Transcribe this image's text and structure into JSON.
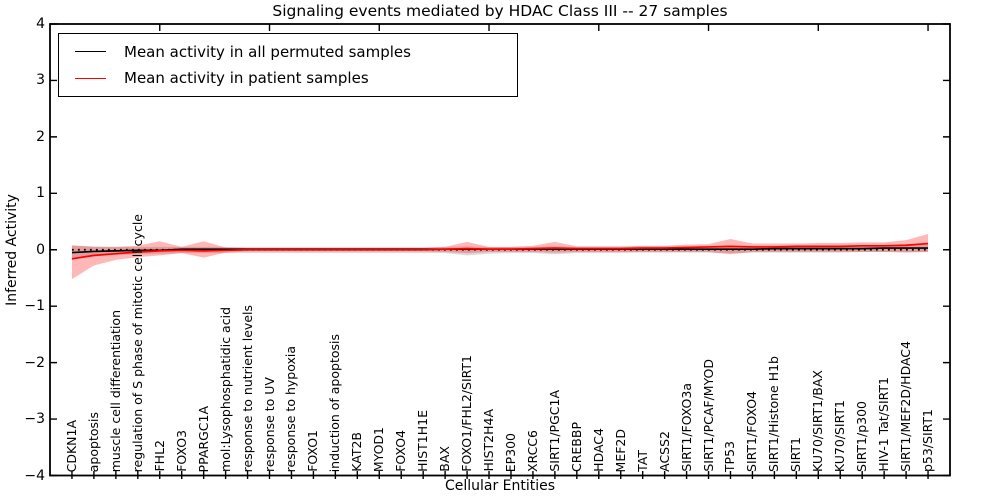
{
  "figure": {
    "title": "Signaling events mediated by HDAC Class III -- 27 samples",
    "xlabel": "Cellular Entities",
    "ylabel": "Inferred Activity"
  },
  "axes": {
    "ytick_labels": [
      "4",
      "3",
      "2",
      "1",
      "0",
      "−1",
      "−2",
      "−3",
      "−4"
    ],
    "ytick_values": [
      4,
      3,
      2,
      1,
      0,
      -1,
      -2,
      -3,
      -4
    ]
  },
  "chart_data": {
    "type": "line",
    "title": "Signaling events mediated by HDAC Class III -- 27 samples",
    "xlabel": "Cellular Entities",
    "ylabel": "Inferred Activity",
    "ylim": [
      -4,
      4
    ],
    "xlim_units": [
      0,
      41
    ],
    "yticks": [
      4,
      3,
      2,
      1,
      0,
      -1,
      -2,
      -3,
      -4
    ],
    "top_xticks_units": [
      5,
      10,
      15,
      20,
      25,
      30,
      35,
      40
    ],
    "grid": false,
    "legend_position": "upper left",
    "zero_reference_line": {
      "style": "dotted",
      "color": "#000000",
      "y": 0
    },
    "categories": [
      "CDKN1A",
      "apoptosis",
      "muscle cell differentiation",
      "regulation of S phase of mitotic cell cycle",
      "FHL2",
      "FOXO3",
      "PPARGC1A",
      "mol:Lysophosphatidic acid",
      "response to nutrient levels",
      "response to UV",
      "response to hypoxia",
      "FOXO1",
      "induction of apoptosis",
      "KAT2B",
      "MYOD1",
      "FOXO4",
      "HIST1H1E",
      "BAX",
      "FOXO1/FHL2/SIRT1",
      "HIST2H4A",
      "EP300",
      "XRCC6",
      "SIRT1/PGC1A",
      "CREBBP",
      "HDAC4",
      "MEF2D",
      "TAT",
      "ACSS2",
      "SIRT1/FOXO3a",
      "SIRT1/PCAF/MYOD",
      "TP53",
      "SIRT1/FOXO4",
      "SIRT1/Histone H1b",
      "SIRT1",
      "KU70/SIRT1/BAX",
      "KU70/SIRT1",
      "SIRT1/p300",
      "HIV-1 Tat/SIRT1",
      "SIRT1/MEF2D/HDAC4",
      "p53/SIRT1"
    ],
    "series": [
      {
        "name": "Mean activity in all permuted samples",
        "color": "#000000",
        "band_color": "#aaaaaa",
        "band_opacity": 0.45,
        "values": [
          -0.05,
          -0.03,
          -0.02,
          -0.01,
          -0.01,
          0.01,
          0.01,
          0.01,
          0.01,
          0.01,
          0.01,
          0.01,
          0.01,
          0.01,
          0.01,
          0.01,
          0.01,
          0.01,
          0.01,
          0.01,
          0.01,
          0.01,
          0.01,
          0.01,
          0.01,
          0.01,
          0.01,
          0.01,
          0.01,
          0.01,
          0.01,
          0.01,
          0.02,
          0.02,
          0.02,
          0.02,
          0.02,
          0.03,
          0.03,
          0.03
        ],
        "band_upper": [
          0.07,
          0.06,
          0.05,
          0.05,
          0.05,
          0.05,
          0.05,
          0.05,
          0.05,
          0.05,
          0.05,
          0.05,
          0.05,
          0.05,
          0.05,
          0.05,
          0.05,
          0.05,
          0.06,
          0.05,
          0.05,
          0.05,
          0.06,
          0.05,
          0.05,
          0.05,
          0.06,
          0.06,
          0.06,
          0.06,
          0.07,
          0.07,
          0.07,
          0.07,
          0.07,
          0.07,
          0.08,
          0.08,
          0.08,
          0.09
        ],
        "band_lower": [
          -0.16,
          -0.12,
          -0.09,
          -0.08,
          -0.07,
          -0.06,
          -0.06,
          -0.06,
          -0.06,
          -0.06,
          -0.06,
          -0.06,
          -0.06,
          -0.06,
          -0.06,
          -0.06,
          -0.06,
          -0.06,
          -0.1,
          -0.07,
          -0.06,
          -0.06,
          -0.08,
          -0.06,
          -0.06,
          -0.06,
          -0.05,
          -0.05,
          -0.05,
          -0.05,
          -0.06,
          -0.05,
          -0.05,
          -0.05,
          -0.05,
          -0.05,
          -0.04,
          -0.04,
          -0.04,
          -0.04
        ]
      },
      {
        "name": "Mean activity in patient samples",
        "color": "#ff0000",
        "band_color": "#ff0000",
        "band_opacity": 0.28,
        "values": [
          -0.16,
          -0.1,
          -0.07,
          -0.04,
          -0.02,
          -0.01,
          -0.02,
          -0.01,
          0,
          0,
          0,
          0,
          0,
          0,
          0,
          0,
          0,
          0.01,
          0.02,
          0.01,
          0.01,
          0.02,
          0.03,
          0.02,
          0.02,
          0.02,
          0.03,
          0.03,
          0.04,
          0.05,
          0.06,
          0.05,
          0.05,
          0.06,
          0.06,
          0.06,
          0.07,
          0.07,
          0.08,
          0.11
        ],
        "band_upper": [
          0.08,
          0.05,
          0.05,
          0.07,
          0.15,
          0.05,
          0.15,
          0.04,
          0.03,
          0.03,
          0.03,
          0.03,
          0.03,
          0.03,
          0.03,
          0.03,
          0.03,
          0.05,
          0.14,
          0.05,
          0.05,
          0.07,
          0.14,
          0.06,
          0.06,
          0.06,
          0.07,
          0.07,
          0.09,
          0.1,
          0.19,
          0.11,
          0.11,
          0.11,
          0.12,
          0.12,
          0.13,
          0.13,
          0.17,
          0.28
        ],
        "band_lower": [
          -0.52,
          -0.28,
          -0.18,
          -0.13,
          -0.1,
          -0.06,
          -0.14,
          -0.05,
          -0.03,
          -0.03,
          -0.03,
          -0.03,
          -0.03,
          -0.03,
          -0.03,
          -0.03,
          -0.03,
          -0.04,
          -0.06,
          -0.04,
          -0.04,
          -0.04,
          -0.05,
          -0.04,
          -0.04,
          -0.04,
          -0.04,
          -0.04,
          -0.04,
          -0.04,
          -0.08,
          -0.04,
          -0.04,
          -0.04,
          -0.04,
          -0.04,
          -0.04,
          -0.04,
          -0.05,
          -0.04
        ]
      }
    ]
  }
}
